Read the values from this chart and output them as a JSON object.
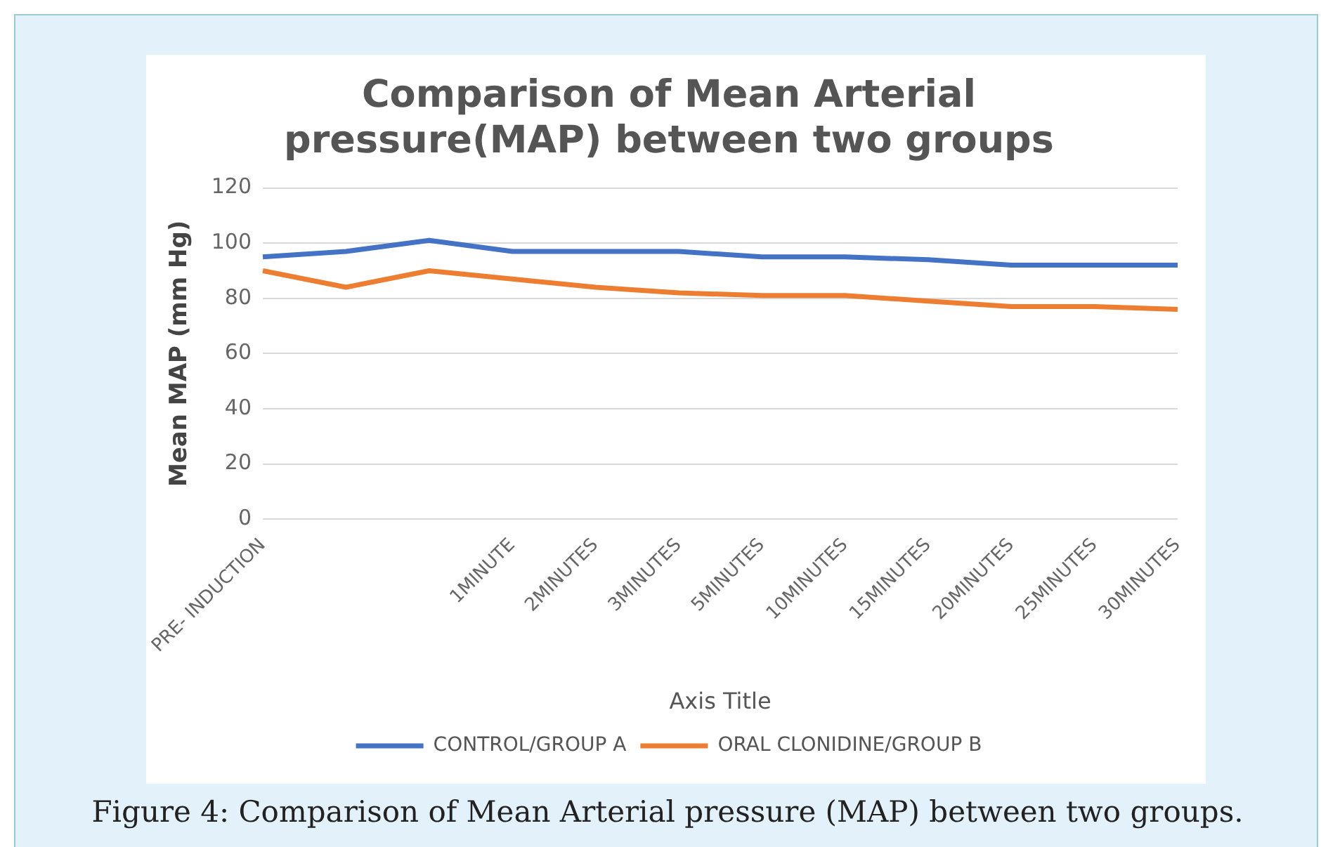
{
  "chart_data": {
    "type": "line",
    "title": "Comparison of Mean Arterial pressure(MAP) between two groups",
    "xlabel": "Axis Title",
    "ylabel": "Mean MAP (mm Hg)",
    "categories": [
      "PRE- INDUCTION",
      null,
      null,
      "1MINUTE",
      "2MINUTES",
      "3MINUTES",
      "5MINUTES",
      "10MINUTES",
      "15MINUTES",
      "20MINUTES",
      "25MINUTES",
      "30MINUTES"
    ],
    "series": [
      {
        "name": "CONTROL/GROUP A",
        "color": "#4472c4",
        "values": [
          95,
          97,
          101,
          97,
          97,
          97,
          95,
          95,
          94,
          92,
          92,
          92
        ]
      },
      {
        "name": "ORAL CLONIDINE/GROUP B",
        "color": "#ed7d31",
        "values": [
          90,
          84,
          90,
          87,
          84,
          82,
          81,
          81,
          79,
          77,
          77,
          76
        ]
      }
    ],
    "ylim": [
      0,
      120
    ],
    "yticks": [
      0,
      20,
      40,
      60,
      80,
      100,
      120
    ],
    "grid": "y",
    "legend": "bottom",
    "marker": "none",
    "annotations": [
      "Figure 4: Comparison of Mean Arterial pressure (MAP) between two groups."
    ]
  }
}
